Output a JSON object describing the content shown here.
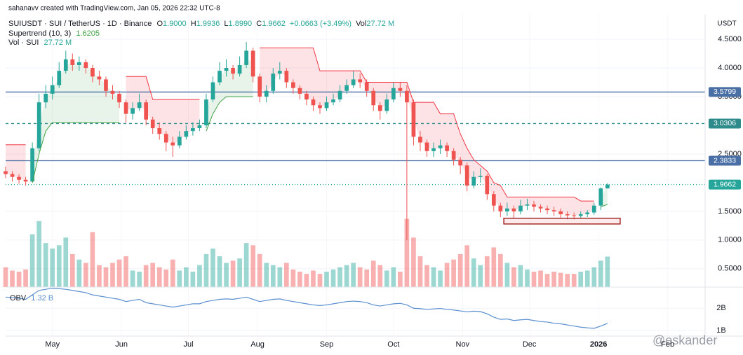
{
  "header": {
    "credit": "sahanavv created with TradingView.com, Jan 05, 2026 22:32 UTC-8",
    "symbol": "SUIUSDT · SUI / TetherUS · 1D · Binance",
    "o_label": "O",
    "o": "1.9000",
    "h_label": "H",
    "h": "1.9936",
    "l_label": "L",
    "l": "1.8990",
    "c_label": "C",
    "c": "1.9662",
    "change": "+0.0663 (+3.49%)",
    "vol_label": "Vol",
    "vol": "27.72 M"
  },
  "chart_data": {
    "type": "candlestick",
    "currency": "USDT",
    "xlim": [
      0,
      104.6
    ],
    "xticks": [
      {
        "value": 7,
        "label": "May"
      },
      {
        "value": 17.33,
        "label": "Jun"
      },
      {
        "value": 27.33,
        "label": "Jul"
      },
      {
        "value": 37.67,
        "label": "Aug"
      },
      {
        "value": 48,
        "label": "Sep"
      },
      {
        "value": 58,
        "label": "Oct"
      },
      {
        "value": 68.33,
        "label": "Nov"
      },
      {
        "value": 78.33,
        "label": "Dec"
      },
      {
        "value": 88.67,
        "label": "2026"
      },
      {
        "value": 99,
        "label": "Feb"
      }
    ],
    "ylim": [
      0.18,
      4.94
    ],
    "yticks": [
      {
        "value": 0.5,
        "label": "0.5000"
      },
      {
        "value": 1,
        "label": "1.0000"
      },
      {
        "value": 1.5,
        "label": "1.5000"
      },
      {
        "value": 2.5,
        "label": "2.5000"
      },
      {
        "value": 3.5,
        "label": "3.5000"
      },
      {
        "value": 4,
        "label": "4.0000"
      },
      {
        "value": 4.5,
        "label": "4.5000"
      }
    ],
    "grid": true,
    "up_color": "#26a69a",
    "down_color": "#ef5350",
    "open": [
      2.2,
      2.15,
      2.1,
      2.05,
      2.02,
      2.6,
      3.4,
      3.55,
      3.7,
      3.95,
      4.15,
      4.05,
      4.1,
      4.0,
      3.85,
      3.8,
      3.6,
      3.55,
      3.4,
      3.2,
      3.3,
      3.4,
      3.1,
      2.95,
      2.85,
      2.7,
      2.65,
      2.8,
      2.9,
      2.95,
      3.0,
      3.45,
      3.75,
      3.95,
      4.0,
      3.9,
      4.05,
      4.3,
      3.85,
      3.5,
      3.6,
      3.9,
      3.95,
      3.75,
      3.65,
      3.55,
      3.45,
      3.35,
      3.3,
      3.4,
      3.45,
      3.6,
      3.7,
      3.8,
      3.75,
      3.6,
      3.35,
      3.25,
      3.45,
      3.65,
      3.6,
      3.4,
      2.8,
      2.7,
      2.55,
      2.6,
      2.65,
      2.55,
      2.4,
      2.3,
      1.95,
      2.1,
      2.12,
      1.8,
      1.6,
      1.5,
      1.55,
      1.5,
      1.6,
      1.62,
      1.58,
      1.55,
      1.52,
      1.5,
      1.45,
      1.43,
      1.42,
      1.45,
      1.48,
      1.6,
      1.9
    ],
    "high": [
      2.28,
      2.2,
      2.15,
      2.1,
      2.7,
      3.55,
      3.7,
      3.85,
      4.1,
      4.3,
      4.25,
      4.2,
      4.15,
      4.05,
      3.95,
      3.85,
      3.7,
      3.6,
      3.45,
      3.4,
      3.55,
      3.45,
      3.15,
      3.05,
      2.9,
      2.8,
      2.9,
      3.0,
      3.05,
      3.1,
      3.55,
      3.85,
      4.1,
      4.15,
      4.05,
      4.2,
      4.45,
      4.35,
      3.9,
      3.7,
      4.0,
      4.1,
      4.0,
      3.8,
      3.7,
      3.6,
      3.5,
      3.4,
      3.5,
      3.55,
      3.7,
      3.8,
      3.95,
      3.9,
      3.8,
      3.65,
      3.4,
      3.55,
      3.75,
      3.75,
      3.7,
      3.45,
      2.9,
      2.75,
      2.7,
      2.75,
      2.7,
      2.6,
      2.45,
      2.35,
      2.2,
      2.25,
      2.15,
      1.85,
      1.65,
      1.65,
      1.6,
      1.7,
      1.72,
      1.68,
      1.62,
      1.6,
      1.58,
      1.55,
      1.5,
      1.48,
      1.5,
      1.52,
      1.65,
      1.92,
      1.9936
    ],
    "low": [
      2.08,
      2.02,
      1.98,
      1.95,
      2.0,
      2.55,
      3.3,
      3.45,
      3.65,
      3.9,
      3.95,
      3.95,
      3.9,
      3.75,
      3.7,
      3.5,
      3.45,
      3.3,
      3.05,
      3.1,
      3.25,
      3.0,
      2.85,
      2.75,
      2.55,
      2.45,
      2.6,
      2.75,
      2.82,
      2.9,
      2.95,
      3.4,
      3.7,
      3.85,
      3.8,
      3.85,
      4.0,
      3.75,
      3.4,
      3.4,
      3.55,
      3.8,
      3.65,
      3.55,
      3.45,
      3.35,
      3.25,
      3.2,
      3.25,
      3.35,
      3.4,
      3.55,
      3.65,
      3.65,
      3.5,
      3.25,
      3.1,
      3.2,
      3.4,
      3.5,
      1.0,
      2.65,
      2.55,
      2.45,
      2.45,
      2.5,
      2.45,
      2.3,
      2.15,
      1.85,
      1.9,
      2.0,
      1.7,
      1.5,
      1.4,
      1.42,
      1.38,
      1.45,
      1.52,
      1.5,
      1.48,
      1.45,
      1.42,
      1.38,
      1.36,
      1.36,
      1.38,
      1.4,
      1.44,
      1.52,
      1.899
    ],
    "close": [
      2.15,
      2.1,
      2.05,
      2.02,
      2.6,
      3.4,
      3.55,
      3.7,
      3.95,
      4.15,
      4.05,
      4.1,
      4.0,
      3.85,
      3.8,
      3.6,
      3.55,
      3.4,
      3.2,
      3.3,
      3.4,
      3.1,
      2.95,
      2.85,
      2.7,
      2.65,
      2.8,
      2.9,
      2.95,
      3.0,
      3.45,
      3.75,
      3.95,
      4.0,
      3.9,
      4.05,
      4.3,
      3.85,
      3.5,
      3.6,
      3.9,
      3.95,
      3.75,
      3.65,
      3.55,
      3.45,
      3.35,
      3.3,
      3.4,
      3.45,
      3.6,
      3.7,
      3.8,
      3.75,
      3.6,
      3.35,
      3.25,
      3.45,
      3.65,
      3.6,
      3.4,
      2.8,
      2.7,
      2.55,
      2.6,
      2.65,
      2.55,
      2.4,
      2.3,
      1.95,
      2.1,
      2.12,
      1.8,
      1.6,
      1.5,
      1.55,
      1.5,
      1.6,
      1.62,
      1.58,
      1.55,
      1.52,
      1.5,
      1.45,
      1.43,
      1.42,
      1.45,
      1.48,
      1.6,
      1.9,
      1.9662
    ],
    "supertrend": {
      "name": "Supertrend (10, 3)",
      "value_label": "1.6205",
      "up_color": "#43a047",
      "down_color": "#f23645",
      "up_values": [
        null,
        null,
        null,
        null,
        2.0,
        2.5,
        2.9,
        3.05,
        3.05,
        3.05,
        3.05,
        3.05,
        3.05,
        3.05,
        3.05,
        3.05,
        3.05,
        3.05,
        null,
        null,
        null,
        null,
        null,
        null,
        null,
        null,
        null,
        null,
        null,
        null,
        2.9,
        3.2,
        3.4,
        3.5,
        3.5,
        3.5,
        3.5,
        3.5,
        null,
        null,
        null,
        null,
        null,
        null,
        null,
        null,
        null,
        null,
        null,
        null,
        null,
        null,
        null,
        null,
        null,
        null,
        null,
        null,
        null,
        null,
        null,
        null,
        null,
        null,
        null,
        null,
        null,
        null,
        null,
        null,
        null,
        null,
        null,
        null,
        null,
        null,
        null,
        null,
        null,
        null,
        null,
        null,
        null,
        null,
        null,
        null,
        null,
        null,
        null,
        1.58,
        1.6205
      ],
      "down_values": [
        2.66,
        2.66,
        2.66,
        2.66,
        null,
        null,
        null,
        null,
        null,
        null,
        null,
        null,
        null,
        null,
        null,
        null,
        null,
        null,
        3.85,
        3.85,
        3.85,
        3.85,
        3.45,
        3.45,
        3.45,
        3.45,
        3.45,
        3.45,
        3.45,
        3.45,
        null,
        null,
        null,
        null,
        null,
        null,
        null,
        null,
        4.35,
        4.35,
        4.35,
        4.35,
        4.35,
        4.35,
        4.35,
        4.35,
        4.35,
        3.95,
        3.95,
        3.95,
        3.95,
        3.95,
        3.95,
        3.95,
        3.75,
        3.75,
        3.75,
        3.75,
        3.75,
        3.75,
        3.75,
        3.4,
        3.4,
        3.4,
        3.4,
        3.2,
        3.2,
        3.2,
        2.85,
        2.6,
        2.4,
        2.3,
        2.2,
        2.0,
        1.95,
        1.75,
        1.75,
        1.75,
        1.75,
        1.75,
        1.75,
        1.75,
        1.75,
        1.75,
        1.75,
        1.75,
        1.68,
        1.68,
        1.68,
        null,
        null
      ]
    },
    "volume": {
      "name": "Vol · SUI",
      "value_label": "27.72 M",
      "ylim": [
        0,
        70
      ],
      "values": [
        18,
        15,
        14,
        16,
        48,
        60,
        40,
        35,
        38,
        45,
        30,
        25,
        22,
        50,
        20,
        18,
        22,
        25,
        28,
        15,
        14,
        20,
        22,
        18,
        16,
        25,
        15,
        18,
        14,
        20,
        30,
        35,
        28,
        22,
        24,
        26,
        40,
        38,
        30,
        22,
        20,
        18,
        22,
        16,
        14,
        12,
        15,
        12,
        14,
        16,
        18,
        20,
        22,
        18,
        16,
        24,
        20,
        15,
        18,
        14,
        62,
        45,
        28,
        20,
        18,
        15,
        22,
        25,
        30,
        38,
        26,
        20,
        28,
        36,
        30,
        22,
        18,
        20,
        16,
        14,
        15,
        12,
        14,
        13,
        12,
        12,
        14,
        15,
        18,
        24,
        27.72
      ]
    },
    "levels": [
      {
        "value": 3.5799,
        "color": "#4a6fa5",
        "dash": "none"
      },
      {
        "value": 3.0306,
        "color": "#2e8b8b",
        "dash": "4 4"
      },
      {
        "value": 2.3833,
        "color": "#4a6fa5",
        "dash": "none"
      },
      {
        "value": 1.9662,
        "color": "#26a69a",
        "dash": "1 3"
      }
    ],
    "box": {
      "x": [
        74.5,
        91.9
      ],
      "y": [
        1.28,
        1.38
      ],
      "color": "#a52a2a"
    },
    "obv": {
      "name": "OBV",
      "value_label": "1.32 B",
      "color": "#5b8fd0",
      "ylim": [
        0.75,
        2.95
      ],
      "yticks": [
        {
          "value": 1,
          "label": "1B"
        },
        {
          "value": 2,
          "label": "2B"
        }
      ],
      "values": [
        2.5,
        2.48,
        2.45,
        2.4,
        2.6,
        2.8,
        2.85,
        2.9,
        2.88,
        2.85,
        2.8,
        2.75,
        2.7,
        2.6,
        2.55,
        2.5,
        2.45,
        2.4,
        2.3,
        2.35,
        2.4,
        2.25,
        2.2,
        2.15,
        2.1,
        2.05,
        2.1,
        2.15,
        2.2,
        2.2,
        2.3,
        2.35,
        2.4,
        2.42,
        2.4,
        2.45,
        2.5,
        2.4,
        2.3,
        2.35,
        2.4,
        2.42,
        2.35,
        2.3,
        2.25,
        2.2,
        2.15,
        2.12,
        2.15,
        2.2,
        2.25,
        2.3,
        2.32,
        2.3,
        2.25,
        2.15,
        2.1,
        2.15,
        2.2,
        2.22,
        2.15,
        2.0,
        1.98,
        1.95,
        1.97,
        1.99,
        1.95,
        1.92,
        1.88,
        1.84,
        1.87,
        1.85,
        1.75,
        1.6,
        1.5,
        1.52,
        1.45,
        1.48,
        1.5,
        1.45,
        1.4,
        1.38,
        1.33,
        1.3,
        1.25,
        1.2,
        1.15,
        1.12,
        1.1,
        1.2,
        1.32
      ]
    },
    "watermark": "@eskander"
  }
}
